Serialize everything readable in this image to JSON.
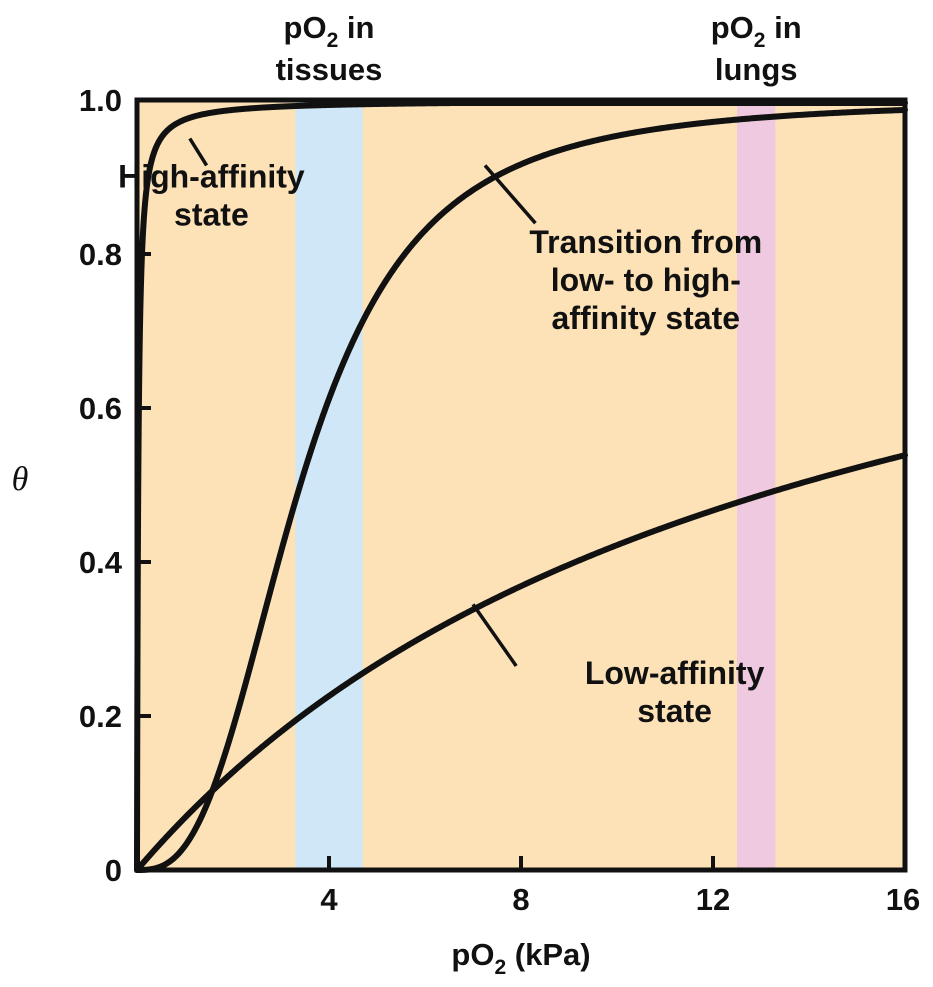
{
  "chart_data": {
    "type": "line",
    "xlabel": {
      "main": "pO",
      "sub": "2",
      "rest": " (kPa)"
    },
    "ylabel": "θ",
    "xlim": [
      0,
      16
    ],
    "ylim": [
      0,
      1.0
    ],
    "x_ticks": [
      {
        "value": 4,
        "label": "4"
      },
      {
        "value": 8,
        "label": "8"
      },
      {
        "value": 12,
        "label": "12"
      },
      {
        "value": 16,
        "label": "16"
      }
    ],
    "y_ticks": [
      {
        "value": 0,
        "label": "0"
      },
      {
        "value": 0.2,
        "label": "0.2"
      },
      {
        "value": 0.4,
        "label": "0.4"
      },
      {
        "value": 0.6,
        "label": "0.6"
      },
      {
        "value": 0.8,
        "label": "0.8"
      },
      {
        "value": 1.0,
        "label": "1.0"
      }
    ],
    "background_color": "#fde2b7",
    "line_color": "#111111",
    "bands": [
      {
        "x_from": 3.3,
        "x_to": 4.7,
        "color": "#cfe7f7",
        "label_main": "pO",
        "label_sub": "2",
        "label_rest": " in",
        "label_line2": "tissues"
      },
      {
        "x_from": 12.5,
        "x_to": 13.3,
        "color": "#efc9df",
        "label_main": "pO",
        "label_sub": "2",
        "label_rest": " in",
        "label_line2": "lungs"
      }
    ],
    "series": [
      {
        "key": "high",
        "p50": 0.026,
        "n": 1.0,
        "label_lines": [
          "High-affinity",
          "state"
        ],
        "label_at": [
          1.55,
          0.875
        ],
        "leader_from": [
          1.1,
          0.95
        ],
        "leader_to": [
          1.45,
          0.915
        ]
      },
      {
        "key": "transition",
        "p50": 3.4,
        "n": 2.8,
        "label_lines": [
          "Transition from",
          "low- to high-",
          "affinity state"
        ],
        "label_at": [
          10.6,
          0.765
        ],
        "leader_from": [
          7.25,
          0.915
        ],
        "leader_to": [
          8.3,
          0.84
        ]
      },
      {
        "key": "low",
        "p50": 13.7,
        "n": 1.0,
        "label_lines": [
          "Low-affinity",
          "state"
        ],
        "label_at": [
          11.2,
          0.23
        ],
        "leader_from": [
          7.0,
          0.345
        ],
        "leader_to": [
          7.9,
          0.265
        ]
      }
    ]
  }
}
